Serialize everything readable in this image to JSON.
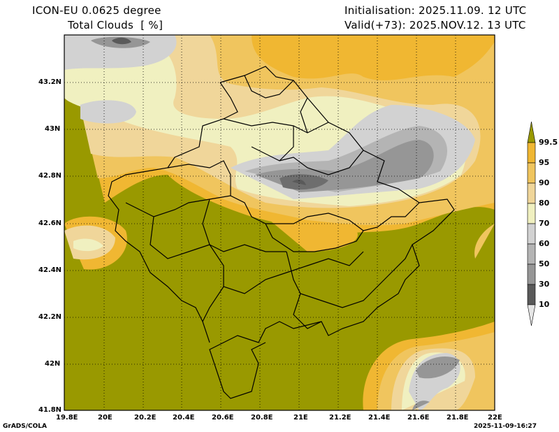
{
  "header": {
    "model": "ICON-EU 0.0625 degree",
    "variable": "Total Clouds  [ %]",
    "init": "Initialisation: 2025.11.09. 12 UTC",
    "valid": "Valid(+73): 2025.NOV.12. 13 UTC"
  },
  "lat_ticks": [
    "43.2N",
    "43N",
    "42.8N",
    "42.6N",
    "42.4N",
    "42.2N",
    "42N",
    "41.8N"
  ],
  "lon_ticks": [
    "19.8E",
    "20E",
    "20.2E",
    "20.4E",
    "20.6E",
    "20.8E",
    "21E",
    "21.2E",
    "21.4E",
    "21.6E",
    "21.8E",
    "22E"
  ],
  "colorbar": {
    "labels": [
      "99.5",
      "95",
      "90",
      "80",
      "70",
      "60",
      "50",
      "30",
      "10"
    ],
    "colors": [
      "#999900",
      "#f0b732",
      "#f0c55e",
      "#f0d69a",
      "#f0f0c0",
      "#d2d2d2",
      "#b4b4b4",
      "#969696",
      "#5a5a5a",
      "#e6e6e6"
    ]
  },
  "footer": {
    "left": "GrADS/COLA",
    "right": "2025-11-09-16:27"
  }
}
